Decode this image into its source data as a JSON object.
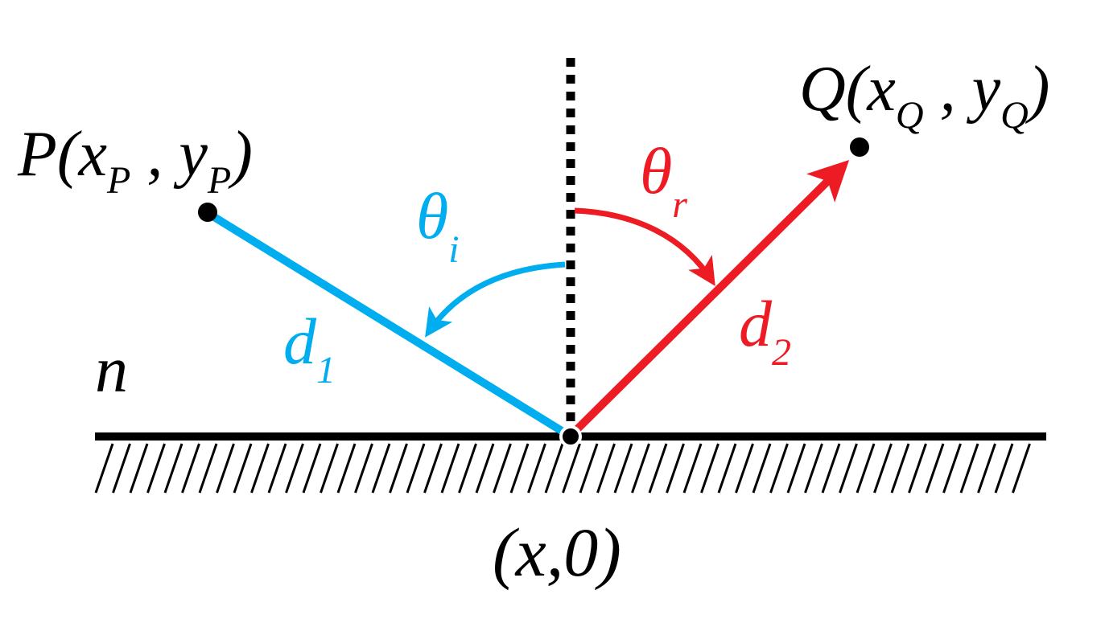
{
  "colors": {
    "ink": "#000000",
    "incident": "#00AEEF",
    "reflected": "#ED1C24"
  },
  "labels": {
    "point_p": {
      "main": "P(x",
      "sub1": "P",
      "mid": " , y",
      "sub2": "P",
      "end": ")"
    },
    "point_q": {
      "main": "Q(x",
      "sub1": "Q",
      "mid": " , y",
      "sub2": "Q",
      "end": ")"
    },
    "theta_i": {
      "main": "θ",
      "sub": "i"
    },
    "theta_r": {
      "main": "θ",
      "sub": "r"
    },
    "d1": {
      "main": "d",
      "sub": "1"
    },
    "d2": {
      "main": "d",
      "sub": "2"
    },
    "normal": "n",
    "reflection_point": "(x,0)"
  },
  "icons": {
    "surface": "hatched-mirror-surface",
    "normal_line": "dotted-normal-line"
  }
}
